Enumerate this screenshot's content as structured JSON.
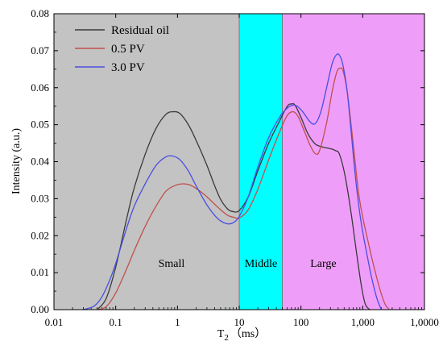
{
  "chart_data": {
    "type": "line",
    "xlabel": "T",
    "xlabel_sub": "2",
    "xlabel_unit": "（ms）",
    "ylabel": "Intensity (a.u.)",
    "xscale": "log",
    "xlim": [
      0.01,
      10000
    ],
    "ylim": [
      0,
      0.08
    ],
    "x_tick_values": [
      0.01,
      0.1,
      1,
      10,
      100,
      1000,
      10000
    ],
    "x_tick_labels": [
      "0.01",
      "0.1",
      "1",
      "10",
      "100",
      "1,000",
      "1,0000"
    ],
    "y_tick_values": [
      0,
      0.01,
      0.02,
      0.03,
      0.04,
      0.05,
      0.06,
      0.07,
      0.08
    ],
    "y_tick_labels": [
      "0.00",
      "0.01",
      "0.02",
      "0.03",
      "0.04",
      "0.05",
      "0.06",
      "0.07",
      "0.08"
    ],
    "legend_position": "top-left",
    "regions": [
      {
        "label": "Small",
        "x_start": 0.01,
        "x_end": 10,
        "color": "#c3c3c3"
      },
      {
        "label": "Middle",
        "x_start": 10,
        "x_end": 50,
        "color": "#00ffff"
      },
      {
        "label": "Large",
        "x_start": 50,
        "x_end": 10000,
        "color": "#ee9ef8"
      }
    ],
    "series": [
      {
        "name": "Residual oil",
        "color": "#3a3a3a",
        "points": [
          [
            0.05,
            0
          ],
          [
            0.07,
            0.003
          ],
          [
            0.1,
            0.0115
          ],
          [
            0.15,
            0.0245
          ],
          [
            0.2,
            0.033
          ],
          [
            0.3,
            0.042
          ],
          [
            0.45,
            0.049
          ],
          [
            0.65,
            0.0528
          ],
          [
            0.85,
            0.0535
          ],
          [
            1.1,
            0.053
          ],
          [
            1.5,
            0.05
          ],
          [
            2,
            0.0458
          ],
          [
            3,
            0.039
          ],
          [
            4,
            0.0335
          ],
          [
            5,
            0.0298
          ],
          [
            6.5,
            0.0272
          ],
          [
            8,
            0.0265
          ],
          [
            10,
            0.0268
          ],
          [
            14,
            0.0305
          ],
          [
            20,
            0.0375
          ],
          [
            30,
            0.045
          ],
          [
            45,
            0.051
          ],
          [
            60,
            0.055
          ],
          [
            70,
            0.0556
          ],
          [
            80,
            0.0553
          ],
          [
            100,
            0.052
          ],
          [
            130,
            0.0475
          ],
          [
            170,
            0.0448
          ],
          [
            220,
            0.044
          ],
          [
            300,
            0.0435
          ],
          [
            360,
            0.043
          ],
          [
            420,
            0.042
          ],
          [
            520,
            0.036
          ],
          [
            650,
            0.026
          ],
          [
            800,
            0.015
          ],
          [
            950,
            0.0065
          ],
          [
            1100,
            0.0015
          ],
          [
            1300,
            0
          ]
        ]
      },
      {
        "name": "0.5 PV",
        "color": "#c0504d",
        "points": [
          [
            0.05,
            0
          ],
          [
            0.07,
            0.0008
          ],
          [
            0.1,
            0.0045
          ],
          [
            0.15,
            0.011
          ],
          [
            0.2,
            0.016
          ],
          [
            0.3,
            0.0225
          ],
          [
            0.45,
            0.028
          ],
          [
            0.65,
            0.032
          ],
          [
            0.9,
            0.0335
          ],
          [
            1.2,
            0.034
          ],
          [
            1.6,
            0.0337
          ],
          [
            2.2,
            0.0323
          ],
          [
            3,
            0.0305
          ],
          [
            4,
            0.0285
          ],
          [
            5,
            0.027
          ],
          [
            6.5,
            0.0255
          ],
          [
            8,
            0.025
          ],
          [
            10,
            0.0248
          ],
          [
            14,
            0.027
          ],
          [
            20,
            0.0325
          ],
          [
            30,
            0.0405
          ],
          [
            45,
            0.048
          ],
          [
            60,
            0.0525
          ],
          [
            75,
            0.0535
          ],
          [
            90,
            0.0522
          ],
          [
            110,
            0.0488
          ],
          [
            140,
            0.0445
          ],
          [
            170,
            0.0422
          ],
          [
            200,
            0.043
          ],
          [
            260,
            0.0505
          ],
          [
            320,
            0.059
          ],
          [
            380,
            0.0642
          ],
          [
            430,
            0.0653
          ],
          [
            480,
            0.0645
          ],
          [
            560,
            0.059
          ],
          [
            700,
            0.045
          ],
          [
            850,
            0.032
          ],
          [
            1000,
            0.025
          ],
          [
            1200,
            0.019
          ],
          [
            1500,
            0.012
          ],
          [
            1900,
            0.0055
          ],
          [
            2300,
            0.0015
          ],
          [
            2700,
            0
          ]
        ]
      },
      {
        "name": "3.0 PV",
        "color": "#4a4ee0",
        "points": [
          [
            0.03,
            0
          ],
          [
            0.045,
            0.001
          ],
          [
            0.06,
            0.0035
          ],
          [
            0.08,
            0.008
          ],
          [
            0.1,
            0.0125
          ],
          [
            0.15,
            0.022
          ],
          [
            0.2,
            0.028
          ],
          [
            0.3,
            0.034
          ],
          [
            0.45,
            0.039
          ],
          [
            0.65,
            0.0413
          ],
          [
            0.85,
            0.0415
          ],
          [
            1.1,
            0.0405
          ],
          [
            1.5,
            0.0375
          ],
          [
            2,
            0.0335
          ],
          [
            3,
            0.0283
          ],
          [
            4,
            0.0255
          ],
          [
            5,
            0.024
          ],
          [
            6.5,
            0.0232
          ],
          [
            8,
            0.0235
          ],
          [
            10,
            0.0252
          ],
          [
            14,
            0.0305
          ],
          [
            20,
            0.0385
          ],
          [
            30,
            0.0465
          ],
          [
            45,
            0.052
          ],
          [
            60,
            0.0545
          ],
          [
            75,
            0.0553
          ],
          [
            90,
            0.0548
          ],
          [
            110,
            0.0532
          ],
          [
            140,
            0.0508
          ],
          [
            170,
            0.0503
          ],
          [
            210,
            0.0535
          ],
          [
            260,
            0.06
          ],
          [
            320,
            0.0665
          ],
          [
            380,
            0.069
          ],
          [
            430,
            0.0685
          ],
          [
            480,
            0.066
          ],
          [
            560,
            0.059
          ],
          [
            650,
            0.048
          ],
          [
            750,
            0.037
          ],
          [
            880,
            0.027
          ],
          [
            1000,
            0.021
          ],
          [
            1200,
            0.014
          ],
          [
            1400,
            0.0085
          ],
          [
            1700,
            0.003
          ],
          [
            2000,
            0
          ]
        ]
      }
    ]
  }
}
